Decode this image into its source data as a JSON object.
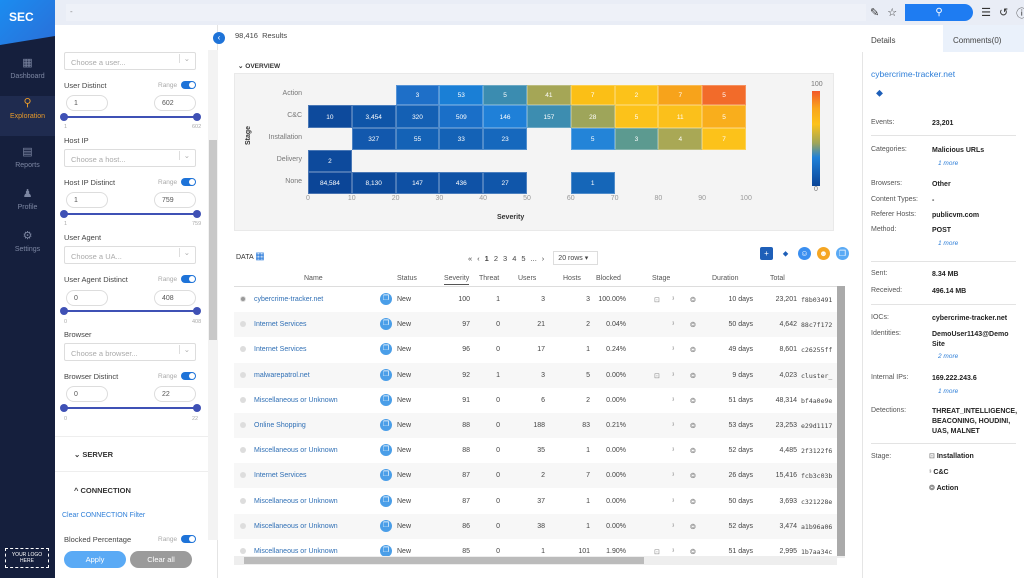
{
  "nav": {
    "logo": "SEC",
    "items": [
      {
        "label": "Dashboard",
        "icon": "grid-icon"
      },
      {
        "label": "Exploration",
        "icon": "search-magnifier-icon",
        "active": true
      },
      {
        "label": "Reports",
        "icon": "clipboard-icon"
      },
      {
        "label": "Profile",
        "icon": "user-icon"
      },
      {
        "label": "Settings",
        "icon": "gear-icon"
      }
    ],
    "your_logo": "YOUR LOGO HERE"
  },
  "topbar": {
    "search_value": "-"
  },
  "filters": {
    "user_select": "Choose a user...",
    "user_distinct": {
      "label": "User Distinct",
      "range": "Range",
      "min": "1",
      "max": "602",
      "lo": "1",
      "hi": "602"
    },
    "host_ip": {
      "label": "Host IP",
      "placeholder": "Choose a host..."
    },
    "host_distinct": {
      "label": "Host IP Distinct",
      "range": "Range",
      "min": "1",
      "max": "759",
      "lo": "1",
      "hi": "759"
    },
    "user_agent": {
      "label": "User Agent",
      "placeholder": "Choose a UA..."
    },
    "ua_distinct": {
      "label": "User Agent Distinct",
      "range": "Range",
      "min": "0",
      "max": "408",
      "lo": "0",
      "hi": "408"
    },
    "browser": {
      "label": "Browser",
      "placeholder": "Choose a browser..."
    },
    "browser_distinct": {
      "label": "Browser Distinct",
      "range": "Range",
      "min": "0",
      "max": "22",
      "lo": "0",
      "hi": "22"
    },
    "server": "SERVER",
    "connection": "CONNECTION",
    "clear_connection": "Clear CONNECTION  Filter",
    "blocked": {
      "label": "Blocked Percentage",
      "range": "Range"
    },
    "apply": "Apply",
    "clear_all": "Clear all"
  },
  "main": {
    "results_count": "98,416",
    "results_label": "Results",
    "overview": "OVERVIEW",
    "data_label": "DATA",
    "pager": {
      "first": "«",
      "prev": "‹",
      "pages": [
        "1",
        "2",
        "3",
        "4",
        "5",
        "..."
      ],
      "next": "›",
      "rows": "20 rows"
    }
  },
  "chart_data": {
    "type": "heatmap",
    "xlabel": "Severity",
    "ylabel": "Stage",
    "xlim": [
      0,
      100
    ],
    "xticks": [
      "0",
      "10",
      "20",
      "30",
      "40",
      "50",
      "60",
      "70",
      "80",
      "90",
      "100"
    ],
    "rows": [
      "Action",
      "C&C",
      "Installation",
      "Delivery",
      "None"
    ],
    "colorbar": {
      "min": "0",
      "max": "100"
    },
    "cells": [
      [
        "Action",
        20,
        "3",
        "#1e6fc8"
      ],
      [
        "Action",
        30,
        "53",
        "#1a7fd6"
      ],
      [
        "Action",
        40,
        "5",
        "#3b8cb0"
      ],
      [
        "Action",
        50,
        "41",
        "#a5a656"
      ],
      [
        "Action",
        60,
        "7",
        "#fbbf16"
      ],
      [
        "Action",
        70,
        "2",
        "#fcc21a"
      ],
      [
        "Action",
        80,
        "7",
        "#f7a31b"
      ],
      [
        "Action",
        90,
        "5",
        "#f26b2a"
      ],
      [
        "C&C",
        0,
        "10",
        "#0d4a9c"
      ],
      [
        "C&C",
        10,
        "3,454",
        "#0f55a8"
      ],
      [
        "C&C",
        20,
        "320",
        "#1460b4"
      ],
      [
        "C&C",
        30,
        "509",
        "#1a6fc8"
      ],
      [
        "C&C",
        40,
        "146",
        "#1f80d8"
      ],
      [
        "C&C",
        50,
        "157",
        "#3d8db0"
      ],
      [
        "C&C",
        60,
        "28",
        "#9ea55a"
      ],
      [
        "C&C",
        70,
        "5",
        "#fcc21a"
      ],
      [
        "C&C",
        80,
        "11",
        "#fbc01b"
      ],
      [
        "C&C",
        90,
        "5",
        "#f9ae1c"
      ],
      [
        "Installation",
        10,
        "327",
        "#1258ad"
      ],
      [
        "Installation",
        20,
        "55",
        "#1462b6"
      ],
      [
        "Installation",
        30,
        "33",
        "#1462b6"
      ],
      [
        "Installation",
        40,
        "23",
        "#1668bd"
      ],
      [
        "Installation",
        60,
        "5",
        "#2384d8"
      ],
      [
        "Installation",
        70,
        "3",
        "#5c9a90"
      ],
      [
        "Installation",
        80,
        "4",
        "#a9a855"
      ],
      [
        "Installation",
        90,
        "7",
        "#fcc21a"
      ],
      [
        "Delivery",
        0,
        "2",
        "#0d4a9c"
      ],
      [
        "None",
        0,
        "84,584",
        "#0b4597"
      ],
      [
        "None",
        10,
        "8,130",
        "#0c4a9c"
      ],
      [
        "None",
        20,
        "147",
        "#0e50a4"
      ],
      [
        "None",
        30,
        "436",
        "#0f52a6"
      ],
      [
        "None",
        40,
        "27",
        "#1056aa"
      ],
      [
        "None",
        60,
        "1",
        "#1566b8"
      ]
    ]
  },
  "table": {
    "columns": [
      "Name",
      "Status",
      "Severity",
      "Threat",
      "Users",
      "Hosts",
      "Blocked",
      "Stage",
      "Duration",
      "Total"
    ],
    "rows": [
      {
        "name": "cybercrime-tracker.net",
        "status": "New",
        "severity": "100",
        "threat": "1",
        "users": "3",
        "hosts": "3",
        "blocked": "100.00%",
        "stage": [
          1,
          1,
          1
        ],
        "duration": "10 days",
        "total": "23,201",
        "hash": "f8b03491",
        "selected": true
      },
      {
        "name": "Internet Services",
        "status": "New",
        "severity": "97",
        "threat": "0",
        "users": "21",
        "hosts": "2",
        "blocked": "0.04%",
        "stage": [
          0,
          1,
          1
        ],
        "duration": "50 days",
        "total": "4,642",
        "hash": "88c7f172"
      },
      {
        "name": "Internet Services",
        "status": "New",
        "severity": "96",
        "threat": "0",
        "users": "17",
        "hosts": "1",
        "blocked": "0.24%",
        "stage": [
          0,
          1,
          1
        ],
        "duration": "49 days",
        "total": "8,601",
        "hash": "c26255ff"
      },
      {
        "name": "malwarepatrol.net",
        "status": "New",
        "severity": "92",
        "threat": "1",
        "users": "3",
        "hosts": "5",
        "blocked": "0.00%",
        "stage": [
          1,
          1,
          1
        ],
        "duration": "9 days",
        "total": "4,023",
        "hash": "cluster_"
      },
      {
        "name": "Miscellaneous or Unknown",
        "status": "New",
        "severity": "91",
        "threat": "0",
        "users": "6",
        "hosts": "2",
        "blocked": "0.00%",
        "stage": [
          0,
          1,
          1
        ],
        "duration": "51 days",
        "total": "48,314",
        "hash": "bf4a0e9e"
      },
      {
        "name": "Online Shopping",
        "status": "New",
        "severity": "88",
        "threat": "0",
        "users": "188",
        "hosts": "83",
        "blocked": "0.21%",
        "stage": [
          0,
          1,
          1
        ],
        "duration": "53 days",
        "total": "23,253",
        "hash": "e29d1117"
      },
      {
        "name": "Miscellaneous or Unknown",
        "status": "New",
        "severity": "88",
        "threat": "0",
        "users": "35",
        "hosts": "1",
        "blocked": "0.00%",
        "stage": [
          0,
          1,
          1
        ],
        "duration": "52 days",
        "total": "4,485",
        "hash": "2f3122f6"
      },
      {
        "name": "Internet Services",
        "status": "New",
        "severity": "87",
        "threat": "0",
        "users": "2",
        "hosts": "7",
        "blocked": "0.00%",
        "stage": [
          0,
          1,
          1
        ],
        "duration": "26 days",
        "total": "15,416",
        "hash": "fcb3c03b"
      },
      {
        "name": "Miscellaneous or Unknown",
        "status": "New",
        "severity": "87",
        "threat": "0",
        "users": "37",
        "hosts": "1",
        "blocked": "0.00%",
        "stage": [
          0,
          1,
          1
        ],
        "duration": "50 days",
        "total": "3,693",
        "hash": "c321228e"
      },
      {
        "name": "Miscellaneous or Unknown",
        "status": "New",
        "severity": "86",
        "threat": "0",
        "users": "38",
        "hosts": "1",
        "blocked": "0.00%",
        "stage": [
          0,
          1,
          1
        ],
        "duration": "52 days",
        "total": "3,474",
        "hash": "a1b96a06"
      },
      {
        "name": "Miscellaneous or Unknown",
        "status": "New",
        "severity": "85",
        "threat": "0",
        "users": "1",
        "hosts": "101",
        "blocked": "1.90%",
        "stage": [
          1,
          1,
          1
        ],
        "duration": "51 days",
        "total": "2,995",
        "hash": "1b7aa34c"
      }
    ]
  },
  "details": {
    "tab_details": "Details",
    "tab_comments": "Comments(0)",
    "title": "cybercrime-tracker.net",
    "events_k": "Events:",
    "events": "23,201",
    "categories_k": "Categories:",
    "categories": "Malicious URLs",
    "more1": "1 more",
    "browsers_k": "Browsers:",
    "browsers": "Other",
    "content_k": "Content Types:",
    "content": "-",
    "referer_k": "Referer Hosts:",
    "referer": "publicvm.com",
    "method_k": "Method:",
    "method": "POST",
    "more2": "1 more",
    "sent_k": "Sent:",
    "sent": "8.34 MB",
    "received_k": "Received:",
    "received": "496.14 MB",
    "iocs_k": "IOCs:",
    "iocs": "cybercrime-tracker.net",
    "identities_k": "Identities:",
    "identities": "DemoUser1143@Demo Site",
    "more3": "2 more",
    "ips_k": "Internal IPs:",
    "ips": "169.222.243.6",
    "more4": "1 more",
    "detections_k": "Detections:",
    "detections": "THREAT_INTELLIGENCE, BEACONING, HOUDINI, UAS, MALNET",
    "stage_k": "Stage:",
    "stages": [
      "Installation",
      "C&C",
      "Action"
    ]
  }
}
